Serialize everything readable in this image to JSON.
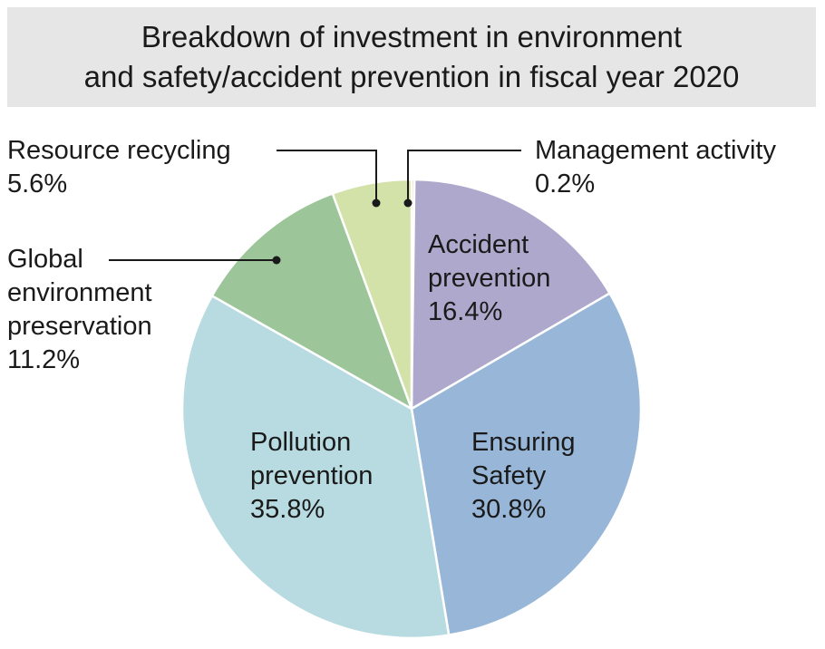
{
  "chart_data": {
    "type": "pie",
    "title_lines": [
      "Breakdown of investment in environment",
      "and safety/accident prevention in fiscal year 2020"
    ],
    "slices": [
      {
        "name": "Management activity",
        "label_lines": [
          "Management activity"
        ],
        "value": 0.2,
        "value_label": "0.2%",
        "color": "#f2b37c",
        "label_position": "outside"
      },
      {
        "name": "Accident prevention",
        "label_lines": [
          "Accident",
          "prevention"
        ],
        "value": 16.4,
        "value_label": "16.4%",
        "color": "#aea8cc",
        "label_position": "inside"
      },
      {
        "name": "Ensuring Safety",
        "label_lines": [
          "Ensuring",
          "Safety"
        ],
        "value": 30.8,
        "value_label": "30.8%",
        "color": "#98b7d8",
        "label_position": "inside"
      },
      {
        "name": "Pollution prevention",
        "label_lines": [
          "Pollution",
          "prevention"
        ],
        "value": 35.8,
        "value_label": "35.8%",
        "color": "#b7dbe0",
        "label_position": "inside"
      },
      {
        "name": "Global environment preservation",
        "label_lines": [
          "Global",
          "environment",
          "preservation"
        ],
        "value": 11.2,
        "value_label": "11.2%",
        "color": "#9cc699",
        "label_position": "outside"
      },
      {
        "name": "Resource recycling",
        "label_lines": [
          "Resource recycling"
        ],
        "value": 5.6,
        "value_label": "5.6%",
        "color": "#d2e2a8",
        "label_position": "outside"
      }
    ],
    "start_angle_deg": 0,
    "direction": "clockwise"
  }
}
